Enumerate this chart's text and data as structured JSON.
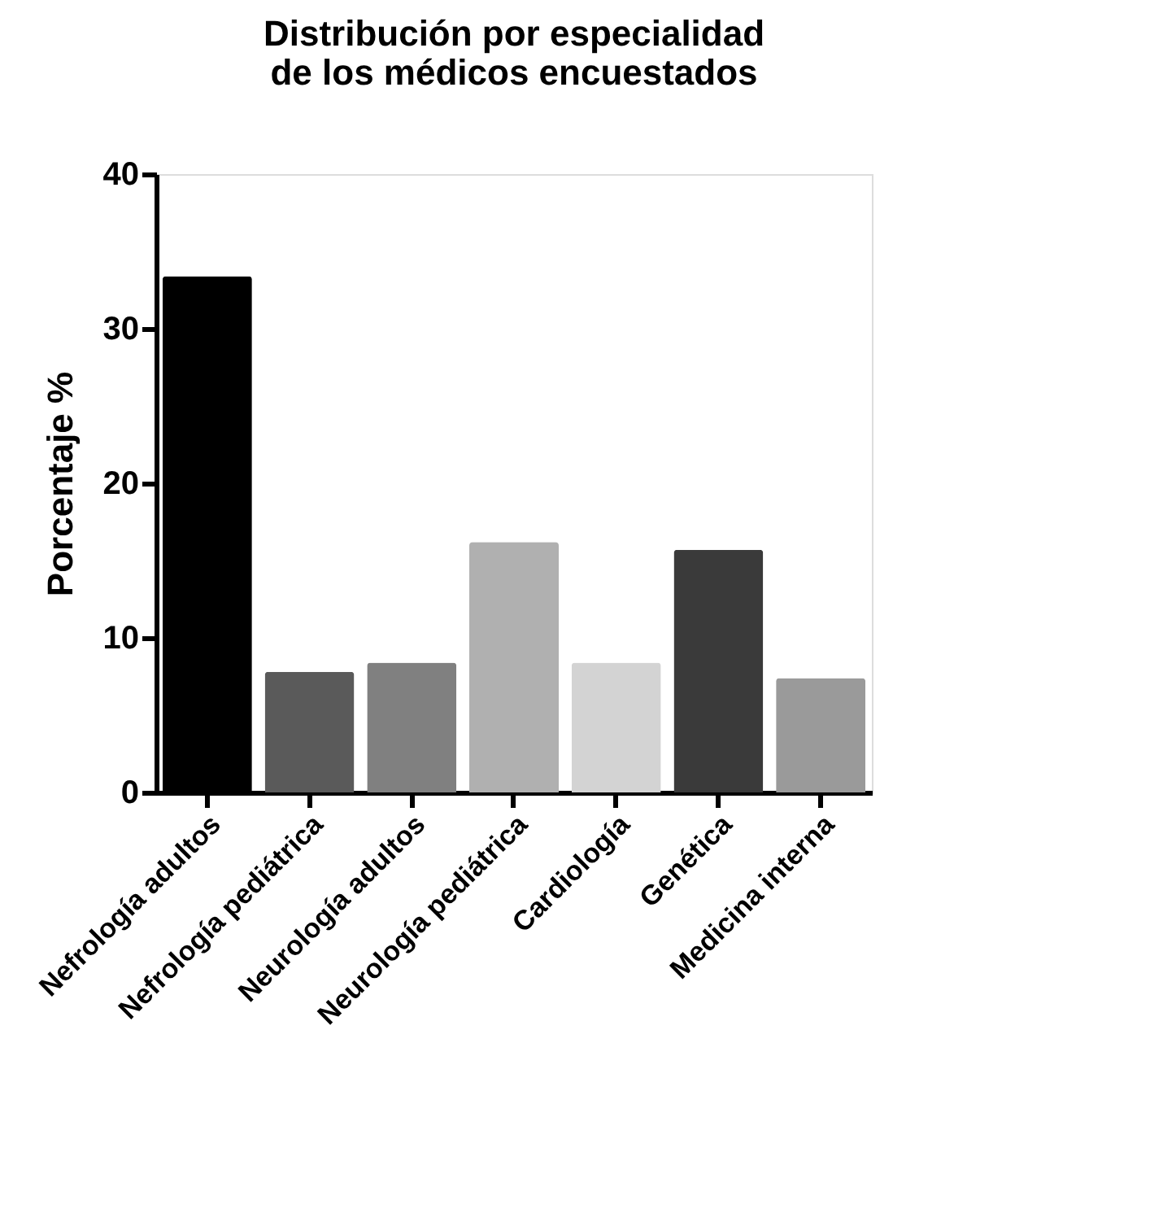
{
  "chart_data": {
    "type": "bar",
    "title": "Distribución por especialidad\nde los médicos encuestados",
    "ylabel": "Porcentaje %",
    "categories": [
      "Nefrología adultos",
      "Nefrología pediátrica",
      "Neurología adultos",
      "Neurología pediátrica",
      "Cardiología",
      "Genética",
      "Medicina interna"
    ],
    "values": [
      33.4,
      7.8,
      8.4,
      16.2,
      8.4,
      15.7,
      7.4
    ],
    "colors": [
      "#000000",
      "#5a5a5a",
      "#808080",
      "#b0b0b0",
      "#d3d3d3",
      "#3a3a3a",
      "#9a9a9a"
    ],
    "ylim": [
      0,
      40
    ],
    "yticks": [
      0,
      10,
      20,
      30,
      40
    ],
    "grid": false,
    "legend": false
  }
}
